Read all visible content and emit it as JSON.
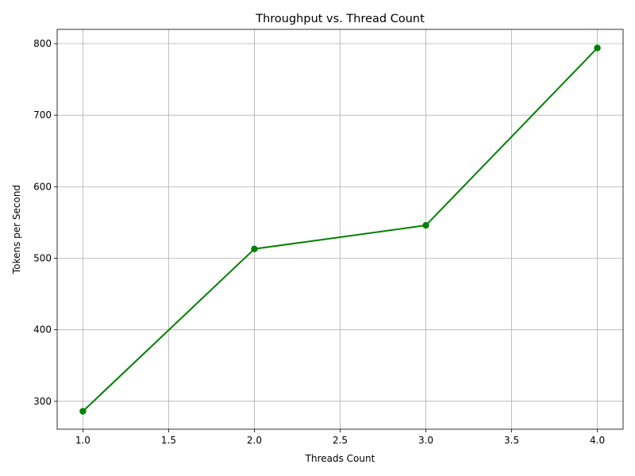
{
  "chart_data": {
    "type": "line",
    "title": "Throughput vs. Thread Count",
    "xlabel": "Threads Count",
    "ylabel": "Tokens per Second",
    "xlim": [
      0.85,
      4.15
    ],
    "ylim": [
      261,
      820
    ],
    "xticks": [
      1.0,
      1.5,
      2.0,
      2.5,
      3.0,
      3.5,
      4.0
    ],
    "xtick_labels": [
      "1.0",
      "1.5",
      "2.0",
      "2.5",
      "3.0",
      "3.5",
      "4.0"
    ],
    "yticks": [
      300,
      400,
      500,
      600,
      700,
      800
    ],
    "ytick_labels": [
      "300",
      "400",
      "500",
      "600",
      "700",
      "800"
    ],
    "grid": true,
    "series": [
      {
        "x": [
          1,
          2,
          3,
          4
        ],
        "y": [
          286,
          513,
          546,
          794
        ],
        "color": "#008000",
        "marker": "circle"
      }
    ]
  }
}
